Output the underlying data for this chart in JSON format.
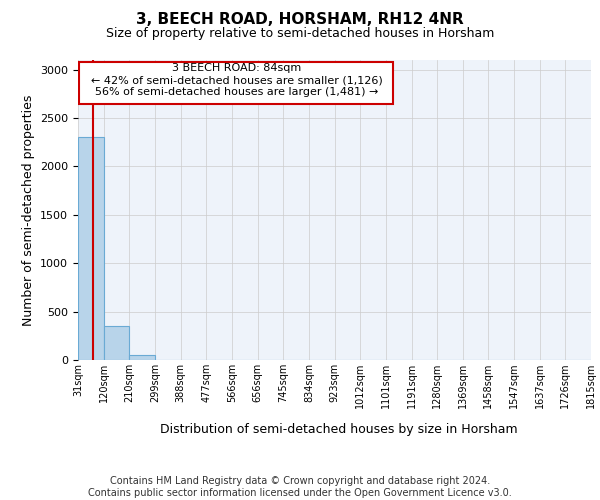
{
  "title": "3, BEECH ROAD, HORSHAM, RH12 4NR",
  "subtitle": "Size of property relative to semi-detached houses in Horsham",
  "xlabel": "Distribution of semi-detached houses by size in Horsham",
  "ylabel": "Number of semi-detached properties",
  "footer_line1": "Contains HM Land Registry data © Crown copyright and database right 2024.",
  "footer_line2": "Contains public sector information licensed under the Open Government Licence v3.0.",
  "bar_edges": [
    31,
    120,
    210,
    299,
    388,
    477,
    566,
    656,
    745,
    834,
    923,
    1012,
    1101,
    1191,
    1280,
    1369,
    1458,
    1547,
    1637,
    1726,
    1815
  ],
  "bar_heights": [
    2300,
    350,
    50,
    5,
    2,
    1,
    1,
    1,
    1,
    1,
    0,
    0,
    0,
    0,
    0,
    0,
    0,
    0,
    0,
    0
  ],
  "bar_color": "#b8d4ea",
  "bar_edge_color": "#6aaad4",
  "property_size": 84,
  "property_label": "3 BEECH ROAD: 84sqm",
  "pct_smaller": 42,
  "count_smaller": 1126,
  "pct_larger": 56,
  "count_larger": 1481,
  "vline_color": "#cc0000",
  "annotation_box_color": "#cc0000",
  "ylim": [
    0,
    3100
  ],
  "xlim": [
    31,
    1815
  ],
  "yticks": [
    0,
    500,
    1000,
    1500,
    2000,
    2500,
    3000
  ],
  "tick_labels": [
    "31sqm",
    "120sqm",
    "210sqm",
    "299sqm",
    "388sqm",
    "477sqm",
    "566sqm",
    "656sqm",
    "745sqm",
    "834sqm",
    "923sqm",
    "1012sqm",
    "1101sqm",
    "1191sqm",
    "1280sqm",
    "1369sqm",
    "1458sqm",
    "1547sqm",
    "1637sqm",
    "1726sqm",
    "1815sqm"
  ],
  "title_fontsize": 11,
  "subtitle_fontsize": 9,
  "axis_label_fontsize": 9,
  "tick_fontsize": 7,
  "annotation_fontsize": 8,
  "footer_fontsize": 7
}
